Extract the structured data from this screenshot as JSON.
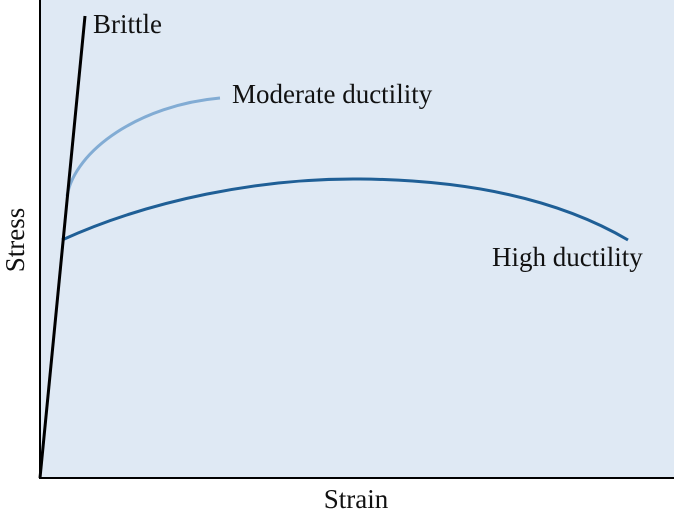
{
  "axes": {
    "x_label": "Strain",
    "y_label": "Stress"
  },
  "curves": [
    {
      "label": "Brittle"
    },
    {
      "label": "Moderate ductility"
    },
    {
      "label": "High ductility"
    }
  ]
}
